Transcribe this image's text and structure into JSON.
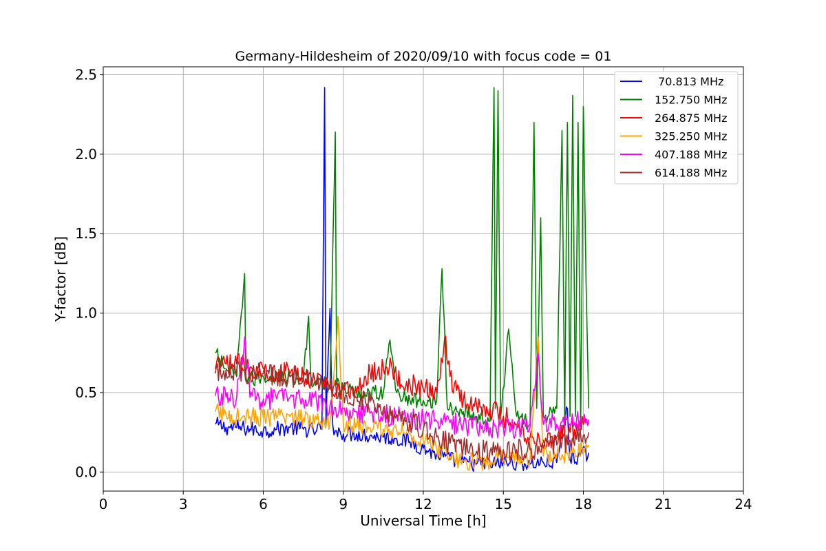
{
  "chart_data": {
    "type": "line",
    "title": "Germany-Hildesheim of 2020/09/10 with focus code = 01",
    "xlabel": "Universal Time [h]",
    "ylabel": "Y-factor [dB]",
    "xlim": [
      0,
      24
    ],
    "ylim": [
      -0.12,
      2.55
    ],
    "xticks": [
      0,
      3,
      6,
      9,
      12,
      15,
      18,
      21,
      24
    ],
    "xtick_labels": [
      "0",
      "3",
      "6",
      "9",
      "12",
      "15",
      "18",
      "21",
      "24"
    ],
    "yticks": [
      0.0,
      0.5,
      1.0,
      1.5,
      2.0,
      2.5
    ],
    "ytick_labels": [
      "0.0",
      "0.5",
      "1.0",
      "1.5",
      "2.0",
      "2.5"
    ],
    "grid": true,
    "legend_position": "top-right",
    "series": [
      {
        "name": " 70.813 MHz",
        "color": "#0000ff",
        "x": [
          4.2,
          4.6,
          5.0,
          5.5,
          6.0,
          6.5,
          7.0,
          7.5,
          8.0,
          8.2,
          8.3,
          8.35,
          8.5,
          8.6,
          8.7,
          9.0,
          9.5,
          10.0,
          10.5,
          11.0,
          11.5,
          12.0,
          12.5,
          13.0,
          13.5,
          14.0,
          14.5,
          15.0,
          15.5,
          16.0,
          16.5,
          17.0,
          17.4,
          17.5,
          17.8,
          18.2
        ],
        "y": [
          0.3,
          0.28,
          0.28,
          0.27,
          0.26,
          0.27,
          0.28,
          0.27,
          0.26,
          0.3,
          2.42,
          0.3,
          1.03,
          0.3,
          0.26,
          0.24,
          0.24,
          0.23,
          0.22,
          0.21,
          0.19,
          0.15,
          0.11,
          0.08,
          0.06,
          0.05,
          0.05,
          0.06,
          0.06,
          0.05,
          0.06,
          0.06,
          0.4,
          0.08,
          0.1,
          0.12
        ]
      },
      {
        "name": "152.750 MHz",
        "color": "#008000",
        "x": [
          4.2,
          4.6,
          5.0,
          5.3,
          5.35,
          5.6,
          6.0,
          6.5,
          7.0,
          7.5,
          7.7,
          7.8,
          8.0,
          8.5,
          8.7,
          8.75,
          9.0,
          9.5,
          10.0,
          10.5,
          10.75,
          11.0,
          11.5,
          12.0,
          12.5,
          12.7,
          12.9,
          13.5,
          14.0,
          14.5,
          14.65,
          14.7,
          14.8,
          14.9,
          15.2,
          15.5,
          16.0,
          16.15,
          16.25,
          16.4,
          16.5,
          17.0,
          17.2,
          17.3,
          17.4,
          17.5,
          17.6,
          17.7,
          17.8,
          17.9,
          18.0,
          18.1,
          18.2
        ],
        "y": [
          0.75,
          0.65,
          0.6,
          1.25,
          0.6,
          0.58,
          0.6,
          0.6,
          0.6,
          0.58,
          0.98,
          0.55,
          0.55,
          0.55,
          2.14,
          0.55,
          0.52,
          0.5,
          0.5,
          0.5,
          0.83,
          0.5,
          0.45,
          0.45,
          0.45,
          1.28,
          0.4,
          0.38,
          0.35,
          0.32,
          2.42,
          0.4,
          2.4,
          0.35,
          0.9,
          0.35,
          0.3,
          2.2,
          0.4,
          1.6,
          0.35,
          0.4,
          2.15,
          0.3,
          2.2,
          0.35,
          2.37,
          0.35,
          2.2,
          0.3,
          2.3,
          1.2,
          0.4
        ]
      },
      {
        "name": "264.875 MHz",
        "color": "#ff0000",
        "x": [
          4.2,
          4.6,
          5.0,
          5.5,
          6.0,
          6.5,
          7.0,
          7.5,
          8.0,
          8.5,
          9.0,
          9.5,
          10.0,
          10.5,
          10.8,
          11.0,
          11.5,
          12.0,
          12.5,
          12.8,
          13.0,
          13.5,
          14.0,
          14.5,
          15.0,
          15.5,
          16.0,
          16.5,
          17.0,
          17.5,
          18.0,
          18.2
        ],
        "y": [
          0.65,
          0.68,
          0.68,
          0.66,
          0.65,
          0.63,
          0.62,
          0.6,
          0.58,
          0.55,
          0.52,
          0.5,
          0.63,
          0.65,
          0.68,
          0.58,
          0.55,
          0.52,
          0.5,
          0.85,
          0.6,
          0.45,
          0.42,
          0.4,
          0.35,
          0.3,
          0.22,
          0.2,
          0.22,
          0.25,
          0.3,
          0.3
        ]
      },
      {
        "name": "325.250 MHz",
        "color": "#ffa500",
        "x": [
          4.2,
          4.6,
          5.0,
          5.5,
          6.0,
          6.5,
          7.0,
          7.5,
          8.0,
          8.5,
          8.8,
          9.0,
          9.5,
          10.0,
          10.5,
          11.0,
          11.5,
          12.0,
          12.5,
          13.0,
          13.5,
          14.0,
          14.5,
          15.0,
          15.5,
          16.0,
          16.3,
          16.5,
          17.0,
          17.5,
          18.0,
          18.2
        ],
        "y": [
          0.38,
          0.36,
          0.35,
          0.35,
          0.34,
          0.34,
          0.35,
          0.34,
          0.33,
          0.32,
          0.98,
          0.3,
          0.29,
          0.28,
          0.27,
          0.26,
          0.24,
          0.2,
          0.15,
          0.1,
          0.07,
          0.06,
          0.07,
          0.08,
          0.09,
          0.08,
          0.85,
          0.1,
          0.1,
          0.12,
          0.15,
          0.17
        ]
      },
      {
        "name": "407.188 MHz",
        "color": "#ff00ff",
        "x": [
          4.2,
          4.6,
          5.0,
          5.3,
          5.5,
          6.0,
          6.5,
          7.0,
          7.5,
          8.0,
          8.5,
          9.0,
          9.5,
          10.0,
          10.5,
          11.0,
          11.5,
          12.0,
          12.5,
          13.0,
          13.5,
          14.0,
          14.5,
          15.0,
          15.5,
          16.0,
          16.3,
          16.5,
          17.0,
          17.5,
          18.0,
          18.2
        ],
        "y": [
          0.48,
          0.47,
          0.47,
          0.85,
          0.47,
          0.46,
          0.46,
          0.47,
          0.45,
          0.44,
          0.42,
          0.4,
          0.38,
          0.37,
          0.36,
          0.35,
          0.34,
          0.33,
          0.32,
          0.31,
          0.3,
          0.29,
          0.28,
          0.28,
          0.28,
          0.28,
          0.75,
          0.3,
          0.3,
          0.3,
          0.32,
          0.33
        ]
      },
      {
        "name": "614.188 MHz",
        "color": "#a52a2a",
        "x": [
          4.2,
          4.6,
          5.0,
          5.5,
          6.0,
          6.5,
          7.0,
          7.5,
          8.0,
          8.5,
          9.0,
          9.5,
          10.0,
          10.5,
          11.0,
          11.5,
          12.0,
          12.5,
          13.0,
          13.5,
          14.0,
          14.5,
          15.0,
          15.5,
          16.0,
          16.5,
          17.0,
          17.5,
          18.0,
          18.2
        ],
        "y": [
          0.62,
          0.64,
          0.64,
          0.62,
          0.62,
          0.61,
          0.6,
          0.59,
          0.56,
          0.53,
          0.5,
          0.47,
          0.44,
          0.4,
          0.36,
          0.32,
          0.27,
          0.22,
          0.18,
          0.15,
          0.13,
          0.13,
          0.14,
          0.14,
          0.14,
          0.15,
          0.17,
          0.2,
          0.23,
          0.25
        ]
      }
    ]
  }
}
